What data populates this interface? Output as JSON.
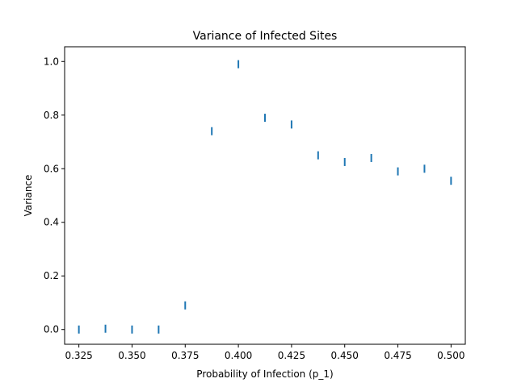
{
  "chart_data": {
    "type": "scatter",
    "title": "Variance of Infected Sites",
    "xlabel": "Probability of Infection (p_1)",
    "ylabel": "Variance",
    "xlim": [
      0.3183,
      0.5067
    ],
    "ylim": [
      -0.055,
      1.055
    ],
    "x_ticks": [
      "0.325",
      "0.350",
      "0.375",
      "0.400",
      "0.425",
      "0.450",
      "0.475",
      "0.500"
    ],
    "y_ticks": [
      "0.0",
      "0.2",
      "0.4",
      "0.6",
      "0.8",
      "1.0"
    ],
    "grid": false,
    "marker": "vertical-line",
    "color": "#1f77b4",
    "points": [
      {
        "x": 0.325,
        "y": 0.0
      },
      {
        "x": 0.3375,
        "y": 0.003
      },
      {
        "x": 0.35,
        "y": 0.0
      },
      {
        "x": 0.3625,
        "y": 0.0
      },
      {
        "x": 0.375,
        "y": 0.09
      },
      {
        "x": 0.3875,
        "y": 0.74
      },
      {
        "x": 0.4,
        "y": 0.99
      },
      {
        "x": 0.4125,
        "y": 0.79
      },
      {
        "x": 0.425,
        "y": 0.765
      },
      {
        "x": 0.4375,
        "y": 0.65
      },
      {
        "x": 0.45,
        "y": 0.625
      },
      {
        "x": 0.4625,
        "y": 0.64
      },
      {
        "x": 0.475,
        "y": 0.59
      },
      {
        "x": 0.4875,
        "y": 0.6
      },
      {
        "x": 0.5,
        "y": 0.555
      }
    ]
  }
}
